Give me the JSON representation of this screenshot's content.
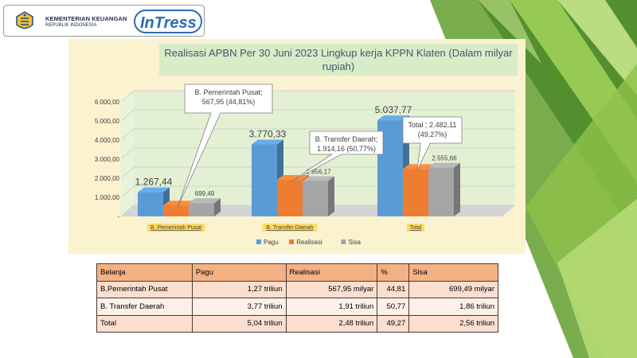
{
  "header": {
    "org_name": "KEMENTERIAN KEUANGAN",
    "org_sub": "REPUBLIK INDONESIA",
    "app_logo_text": "InTress"
  },
  "chart_data": {
    "type": "bar",
    "title": "Realisasi APBN Per 30  Juni 2023  Lingkup kerja KPPN Klaten (Dalam milyar rupiah)",
    "title_lines": [
      "Realisasi APBN Per 30  Juni 2023  Lingkup kerja KPPN Klaten (Dalam milyar",
      "rupiah)"
    ],
    "categories": [
      "B. Pemerintah Pusat",
      "B. Transfer Daerah",
      "Total"
    ],
    "series": [
      {
        "name": "Pagu",
        "values": [
          1267.44,
          3770.33,
          5037.77
        ],
        "labels": [
          "1.267,44",
          "3.770,33",
          "5.037,77"
        ],
        "color": "#5b9bd5"
      },
      {
        "name": "Realisasi",
        "values": [
          567.95,
          1914.16,
          2482.11
        ],
        "labels": [
          "",
          "",
          ""
        ],
        "color": "#ed7d31"
      },
      {
        "name": "Sisa",
        "values": [
          699.49,
          1856.17,
          2555.66
        ],
        "labels": [
          "699,49",
          "1.856,17",
          "2.555,66"
        ],
        "color": "#a5a5a5"
      }
    ],
    "ylim": [
      0,
      6000
    ],
    "yticks": [
      "-",
      "1.000,00",
      "2.000,00",
      "3.000,00",
      "4.000,00",
      "5.000,00",
      "6.000,00"
    ],
    "ytick_values": [
      0,
      1000,
      2000,
      3000,
      4000,
      5000,
      6000
    ],
    "grid": true,
    "legend_position": "bottom",
    "callouts": [
      {
        "lines": [
          "B. Pemerintah Pusat;",
          "567,95 (44,81%)"
        ]
      },
      {
        "lines": [
          "B. Transfer Daerah;",
          "1.914,16 (50,77%)"
        ]
      },
      {
        "lines": [
          "Total ;  2.482,11",
          "(49,27%)"
        ]
      }
    ]
  },
  "table": {
    "headers": [
      "Belanja",
      "Pagu",
      "Realisasi",
      "%",
      "Sisa"
    ],
    "rows": [
      [
        "B.Pemerintah Pusat",
        "1,27 triliun",
        "567,95 milyar",
        "44,81",
        "699,49 milyar"
      ],
      [
        "B. Transfer Daerah",
        "3,77 triliun",
        "1,91 triliun",
        "50,77",
        "1,86 triliun"
      ],
      [
        "Total",
        "5,04 triliun",
        "2,48 triliun",
        "49,27",
        "2,56 triliun"
      ]
    ]
  },
  "colors": {
    "green_dark": "#5d8f2a",
    "green_light": "#9acd4b",
    "table_header": "#f4b183"
  }
}
